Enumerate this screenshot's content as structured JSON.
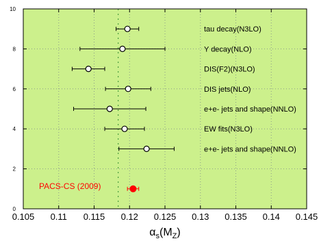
{
  "chart_data": {
    "type": "scatter",
    "title": "",
    "xlabel": "α",
    "xlabel_sub": "s",
    "xlabel_args": "(M",
    "xlabel_args_sub": "Z",
    "xlabel_close": ")",
    "xlim": [
      0.105,
      0.145
    ],
    "ylim": [
      0,
      10
    ],
    "grid": true,
    "plot_background": "#ccf08c",
    "grid_color": "#8a9a8a",
    "x_ticks": [
      {
        "value": 0.105,
        "label": "0.105"
      },
      {
        "value": 0.11,
        "label": "0.11"
      },
      {
        "value": 0.115,
        "label": "0.115"
      },
      {
        "value": 0.12,
        "label": "0.12"
      },
      {
        "value": 0.125,
        "label": "0.125"
      },
      {
        "value": 0.13,
        "label": "0.13"
      },
      {
        "value": 0.135,
        "label": "0.135"
      },
      {
        "value": 0.14,
        "label": "0.14"
      },
      {
        "value": 0.145,
        "label": "0.145"
      }
    ],
    "y_ticks": [
      {
        "value": 0,
        "label": "0"
      },
      {
        "value": 2,
        "label": "2"
      },
      {
        "value": 4,
        "label": "4"
      },
      {
        "value": 6,
        "label": "6"
      },
      {
        "value": 8,
        "label": "8"
      },
      {
        "value": 10,
        "label": "10"
      }
    ],
    "world_average": {
      "value": 0.1184,
      "color": "#2e8b2e"
    },
    "points": [
      {
        "label": "tau decay(N3LO)",
        "y": 9,
        "x": 0.1197,
        "err_lo": 0.0016,
        "err_hi": 0.0016,
        "marker": "open",
        "color": "#000000"
      },
      {
        "label": "Y decay(NLO)",
        "y": 8,
        "x": 0.119,
        "err_lo": 0.006,
        "err_hi": 0.006,
        "marker": "open",
        "color": "#000000"
      },
      {
        "label": "DIS(F2)(N3LO)",
        "y": 7,
        "x": 0.1142,
        "err_lo": 0.0023,
        "err_hi": 0.0023,
        "marker": "open",
        "color": "#000000"
      },
      {
        "label": "DIS jets(NLO)",
        "y": 6,
        "x": 0.1198,
        "err_lo": 0.0032,
        "err_hi": 0.0032,
        "marker": "open",
        "color": "#000000"
      },
      {
        "label": "e+e- jets and shape(NNLO)",
        "y": 5,
        "x": 0.1172,
        "err_lo": 0.0051,
        "err_hi": 0.0051,
        "marker": "open",
        "color": "#000000"
      },
      {
        "label": "EW fits(N3LO)",
        "y": 4,
        "x": 0.1193,
        "err_lo": 0.0028,
        "err_hi": 0.0028,
        "marker": "open",
        "color": "#000000"
      },
      {
        "label": "e+e- jets and shape(NNLO)",
        "y": 3,
        "x": 0.1224,
        "err_lo": 0.0039,
        "err_hi": 0.0039,
        "marker": "open",
        "color": "#000000"
      },
      {
        "label": "PACS-CS (2009)",
        "y": 1,
        "x": 0.1205,
        "err_lo": 0.0008,
        "err_hi": 0.0008,
        "marker": "filled",
        "color": "#ff0000"
      }
    ]
  }
}
